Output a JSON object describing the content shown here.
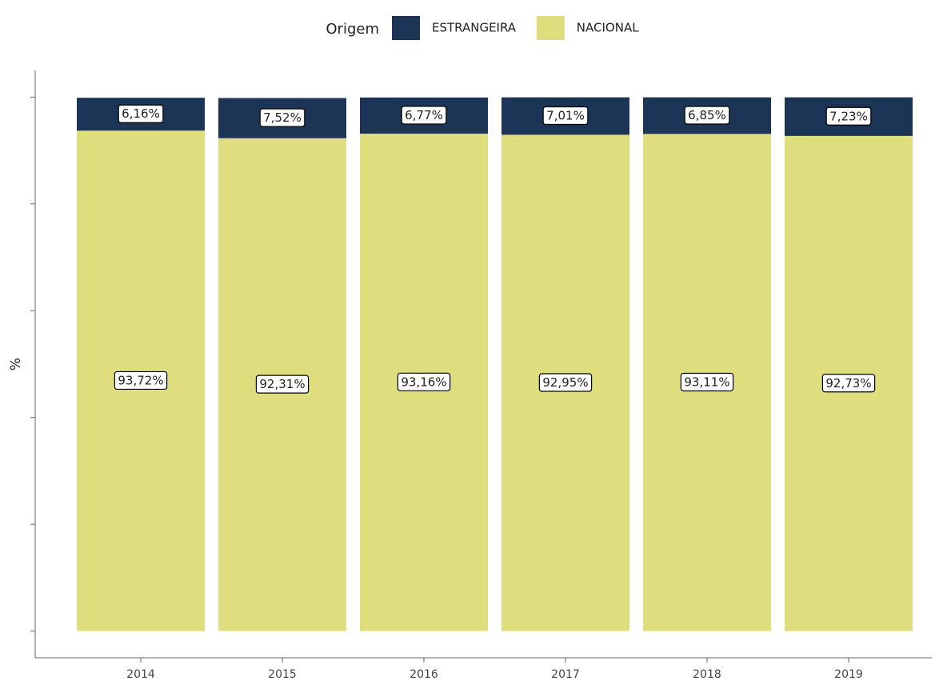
{
  "chart_data": {
    "type": "stacked_bar",
    "legend_title": "Origem",
    "y_label": "%",
    "categories": [
      "2014",
      "2015",
      "2016",
      "2017",
      "2018",
      "2019"
    ],
    "series": [
      {
        "name": "ESTRANGEIRA",
        "color": "#1c3557",
        "values": [
          6.16,
          7.52,
          6.77,
          7.01,
          6.85,
          7.23
        ],
        "value_labels": [
          "6,16%",
          "7,52%",
          "6,77%",
          "7,01%",
          "6,85%",
          "7,23%"
        ]
      },
      {
        "name": "NACIONAL",
        "color": "#dede7f",
        "values": [
          93.72,
          92.31,
          93.16,
          92.95,
          93.11,
          92.73
        ],
        "value_labels": [
          "93,72%",
          "92,31%",
          "93,16%",
          "92,95%",
          "93,11%",
          "92,73%"
        ]
      }
    ],
    "ylim": [
      -5,
      105
    ],
    "yticks": [
      0,
      20,
      40,
      60,
      80,
      100
    ],
    "legend": "top"
  }
}
